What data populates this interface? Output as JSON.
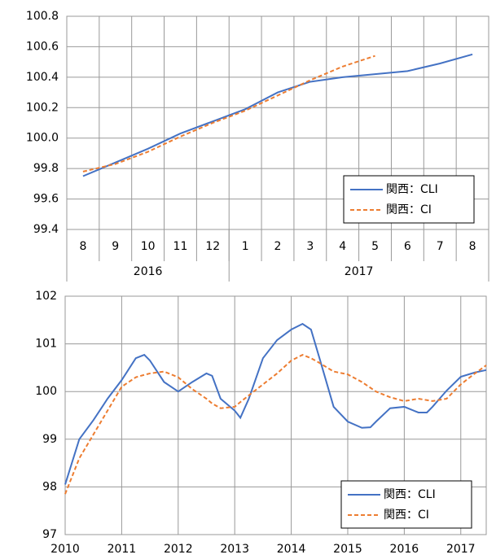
{
  "chart_data": [
    {
      "type": "line",
      "category_groups": [
        {
          "label": "2016",
          "categories": [
            "8",
            "9",
            "10",
            "11",
            "12"
          ]
        },
        {
          "label": "2017",
          "categories": [
            "1",
            "2",
            "3",
            "4",
            "5",
            "6",
            "7",
            "8"
          ]
        }
      ],
      "series": [
        {
          "name": "関西：CLI",
          "color": "#4472c4",
          "dash": false,
          "values": [
            99.75,
            99.84,
            99.93,
            100.03,
            100.11,
            100.19,
            100.3,
            100.37,
            100.4,
            100.42,
            100.44,
            100.49,
            100.55
          ]
        },
        {
          "name": "関西：CI",
          "color": "#ed7d31",
          "dash": true,
          "values": [
            99.78,
            99.83,
            99.91,
            100.01,
            100.1,
            100.18,
            100.28,
            100.38,
            100.47,
            100.54,
            null,
            null,
            null
          ]
        }
      ],
      "ylim": [
        99.4,
        100.8
      ],
      "yticks": [
        99.4,
        99.6,
        99.8,
        {
          "value": 100,
          "label": "100.0"
        },
        100.2,
        100.4,
        100.6,
        100.8
      ],
      "grid": true,
      "legend": "lower right"
    },
    {
      "type": "line",
      "x": [
        2010.0,
        2010.25,
        2010.5,
        2010.75,
        2011.0,
        2011.25,
        2011.4,
        2011.5,
        2011.75,
        2012.0,
        2012.25,
        2012.5,
        2012.6,
        2012.75,
        2013.0,
        2013.1,
        2013.25,
        2013.5,
        2013.75,
        2014.0,
        2014.2,
        2014.35,
        2014.5,
        2014.75,
        2015.0,
        2015.25,
        2015.4,
        2015.5,
        2015.75,
        2016.0,
        2016.25,
        2016.4,
        2016.5,
        2016.75,
        2017.0,
        2017.25,
        2017.45
      ],
      "series": [
        {
          "name": "関西：CLI",
          "color": "#4472c4",
          "dash": false,
          "values": [
            98.05,
            99.0,
            99.4,
            99.85,
            100.24,
            100.7,
            100.77,
            100.65,
            100.2,
            100.0,
            100.2,
            100.38,
            100.33,
            99.85,
            99.6,
            99.45,
            99.85,
            100.7,
            101.08,
            101.3,
            101.42,
            101.3,
            100.7,
            99.68,
            99.37,
            99.24,
            99.25,
            99.37,
            99.65,
            99.68,
            99.56,
            99.56,
            99.68,
            100.02,
            100.31,
            100.4,
            100.45
          ]
        },
        {
          "name": "関西：CI",
          "color": "#ed7d31",
          "dash": true,
          "values": [
            97.85,
            98.6,
            99.1,
            99.6,
            100.1,
            100.3,
            100.35,
            100.38,
            100.42,
            100.3,
            100.05,
            99.85,
            99.75,
            99.65,
            99.68,
            99.78,
            99.92,
            100.15,
            100.38,
            100.65,
            100.77,
            100.7,
            100.6,
            100.42,
            100.36,
            100.2,
            100.08,
            100.0,
            99.88,
            99.8,
            99.85,
            99.82,
            99.8,
            99.85,
            100.15,
            100.38,
            100.55
          ]
        }
      ],
      "xlim": [
        2010,
        2017.45
      ],
      "xticks": [
        2010,
        2011,
        2012,
        2013,
        2014,
        2015,
        2016,
        2017
      ],
      "ylim": [
        97,
        102
      ],
      "yticks": [
        97,
        98,
        99,
        100,
        101,
        102
      ],
      "grid": true,
      "legend": "lower right"
    }
  ]
}
